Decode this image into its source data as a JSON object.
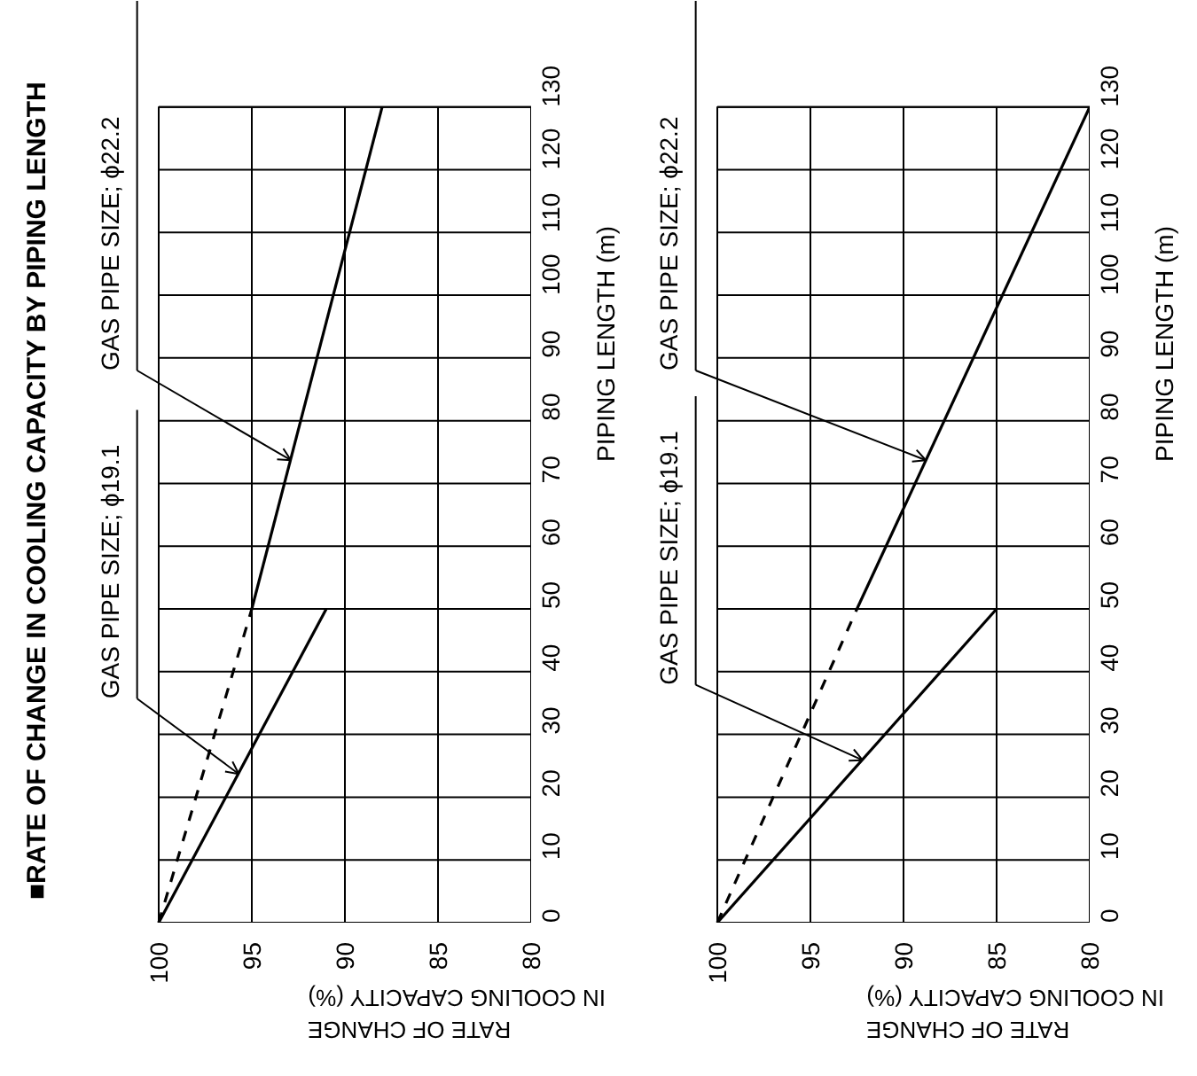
{
  "chart_data": [
    {
      "type": "line",
      "title": "■RATE OF CHANGE IN COOLING CAPACITY BY PIPING LENGTH",
      "xlabel": "RATE OF CHANGE\nIN COOLING CAPACITY (%)",
      "ylabel": "PIPING LENGTH (m)",
      "xlim": [
        100,
        80
      ],
      "xticks": [
        100,
        95,
        90,
        85,
        80
      ],
      "ylim": [
        0,
        130
      ],
      "yticks": [
        0,
        10,
        20,
        30,
        40,
        50,
        60,
        70,
        80,
        90,
        100,
        110,
        120,
        130
      ],
      "grid": true,
      "line_style": "solid",
      "series": [
        {
          "color": "#000000",
          "x": [
            100,
            91
          ],
          "values": [
            0,
            50
          ]
        },
        {
          "color": "#000000",
          "x": [
            100,
            95
          ],
          "values": [
            0,
            50
          ],
          "line_style": "dashed"
        },
        {
          "color": "#000000",
          "x": [
            95,
            88
          ],
          "values": [
            50,
            130
          ]
        }
      ],
      "annotations": [
        {
          "text": "GAS PIPE SIZE; ϕ19.1",
          "x": 95.7,
          "y": 23.7
        },
        {
          "text": "GAS PIPE SIZE; ϕ22.2",
          "x": 92.9,
          "y": 73.7
        }
      ]
    },
    {
      "type": "line",
      "xlabel": "RATE OF CHANGE\nIN COOLING CAPACITY (%)",
      "ylabel": "PIPING LENGTH (m)",
      "xlim": [
        100,
        80
      ],
      "xticks": [
        100,
        95,
        90,
        85,
        80
      ],
      "ylim": [
        0,
        130
      ],
      "yticks": [
        0,
        10,
        20,
        30,
        40,
        50,
        60,
        70,
        80,
        90,
        100,
        110,
        120,
        130
      ],
      "grid": true,
      "line_style": "solid",
      "series": [
        {
          "color": "#000000",
          "x": [
            100,
            85
          ],
          "values": [
            0,
            50
          ]
        },
        {
          "color": "#000000",
          "x": [
            100,
            92.5
          ],
          "values": [
            0,
            50
          ],
          "line_style": "dashed"
        },
        {
          "color": "#000000",
          "x": [
            92.5,
            80
          ],
          "values": [
            50,
            130
          ]
        }
      ],
      "annotations": [
        {
          "text": "GAS PIPE SIZE; ϕ19.1",
          "x": 92.2,
          "y": 25.9
        },
        {
          "text": "GAS PIPE SIZE; ϕ22.2",
          "x": 88.8,
          "y": 73.7
        }
      ]
    }
  ]
}
